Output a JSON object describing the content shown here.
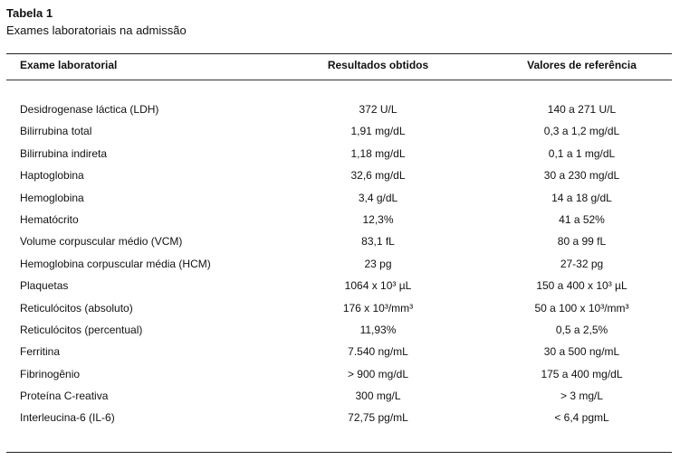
{
  "caption": {
    "title": "Tabela 1",
    "subtitle": "Exames laboratoriais na admissão"
  },
  "table": {
    "headers": [
      "Exame laboratorial",
      "Resultados obtidos",
      "Valores de referência"
    ],
    "rows": [
      [
        "Desidrogenase láctica (LDH)",
        "372 U/L",
        "140 a 271 U/L"
      ],
      [
        "Bilirrubina total",
        "1,91 mg/dL",
        "0,3 a 1,2 mg/dL"
      ],
      [
        "Bilirrubina indireta",
        "1,18 mg/dL",
        "0,1 a 1 mg/dL"
      ],
      [
        "Haptoglobina",
        "32,6 mg/dL",
        "30 a 230 mg/dL"
      ],
      [
        "Hemoglobina",
        "3,4 g/dL",
        "14 a 18 g/dL"
      ],
      [
        "Hematócrito",
        "12,3%",
        "41 a 52%"
      ],
      [
        "Volume corpuscular médio (VCM)",
        "83,1 fL",
        "80 a 99 fL"
      ],
      [
        "Hemoglobina corpuscular média (HCM)",
        "23 pg",
        "27-32 pg"
      ],
      [
        "Plaquetas",
        "1064 x 10³ µL",
        "150 a 400 x 10³ µL"
      ],
      [
        "Reticulócitos (absoluto)",
        "176 x 10³/mm³",
        "50 a 100 x 10³/mm³"
      ],
      [
        "Reticulócitos (percentual)",
        "11,93%",
        "0,5 a 2,5%"
      ],
      [
        "Ferritina",
        "7.540 ng/mL",
        "30 a 500 ng/mL"
      ],
      [
        "Fibrinogênio",
        "> 900 mg/dL",
        "175 a 400 mg/dL"
      ],
      [
        "Proteína C-reativa",
        "300 mg/L",
        "> 3 mg/L"
      ],
      [
        "Interleucina-6 (IL-6)",
        "72,75 pg/mL",
        "< 6,4 pgmL"
      ]
    ]
  }
}
